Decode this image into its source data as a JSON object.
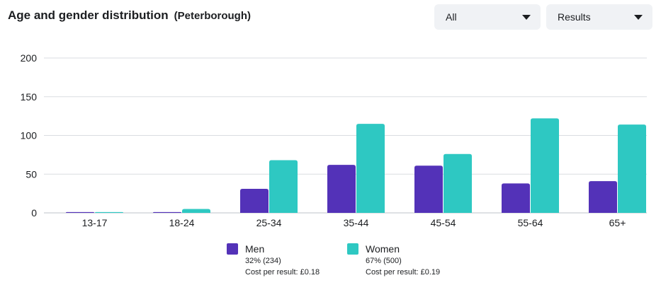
{
  "header": {
    "title": "Age and gender distribution",
    "subtitle": "(Peterborough)"
  },
  "controls": {
    "audience_value": "All",
    "metric_value": "Results"
  },
  "colors": {
    "men": "#5332b8",
    "women": "#2ec8c2",
    "grid": "#dadde1",
    "axis_text": "#1c1e21"
  },
  "chart_data": {
    "type": "bar",
    "categories": [
      "13-17",
      "18-24",
      "25-34",
      "35-44",
      "45-54",
      "55-64",
      "65+"
    ],
    "series": [
      {
        "name": "Men",
        "values": [
          1,
          1,
          31,
          62,
          61,
          38,
          41
        ]
      },
      {
        "name": "Women",
        "values": [
          1,
          5,
          68,
          115,
          76,
          122,
          114
        ]
      }
    ],
    "yticks": [
      0,
      50,
      100,
      150,
      200
    ],
    "ylim": [
      0,
      200
    ],
    "grid": true,
    "legend_position": "bottom-center"
  },
  "legend": {
    "men": {
      "label": "Men",
      "share": "32% (234)",
      "cost": "Cost per result: £0.18"
    },
    "women": {
      "label": "Women",
      "share": "67% (500)",
      "cost": "Cost per result: £0.19"
    }
  }
}
